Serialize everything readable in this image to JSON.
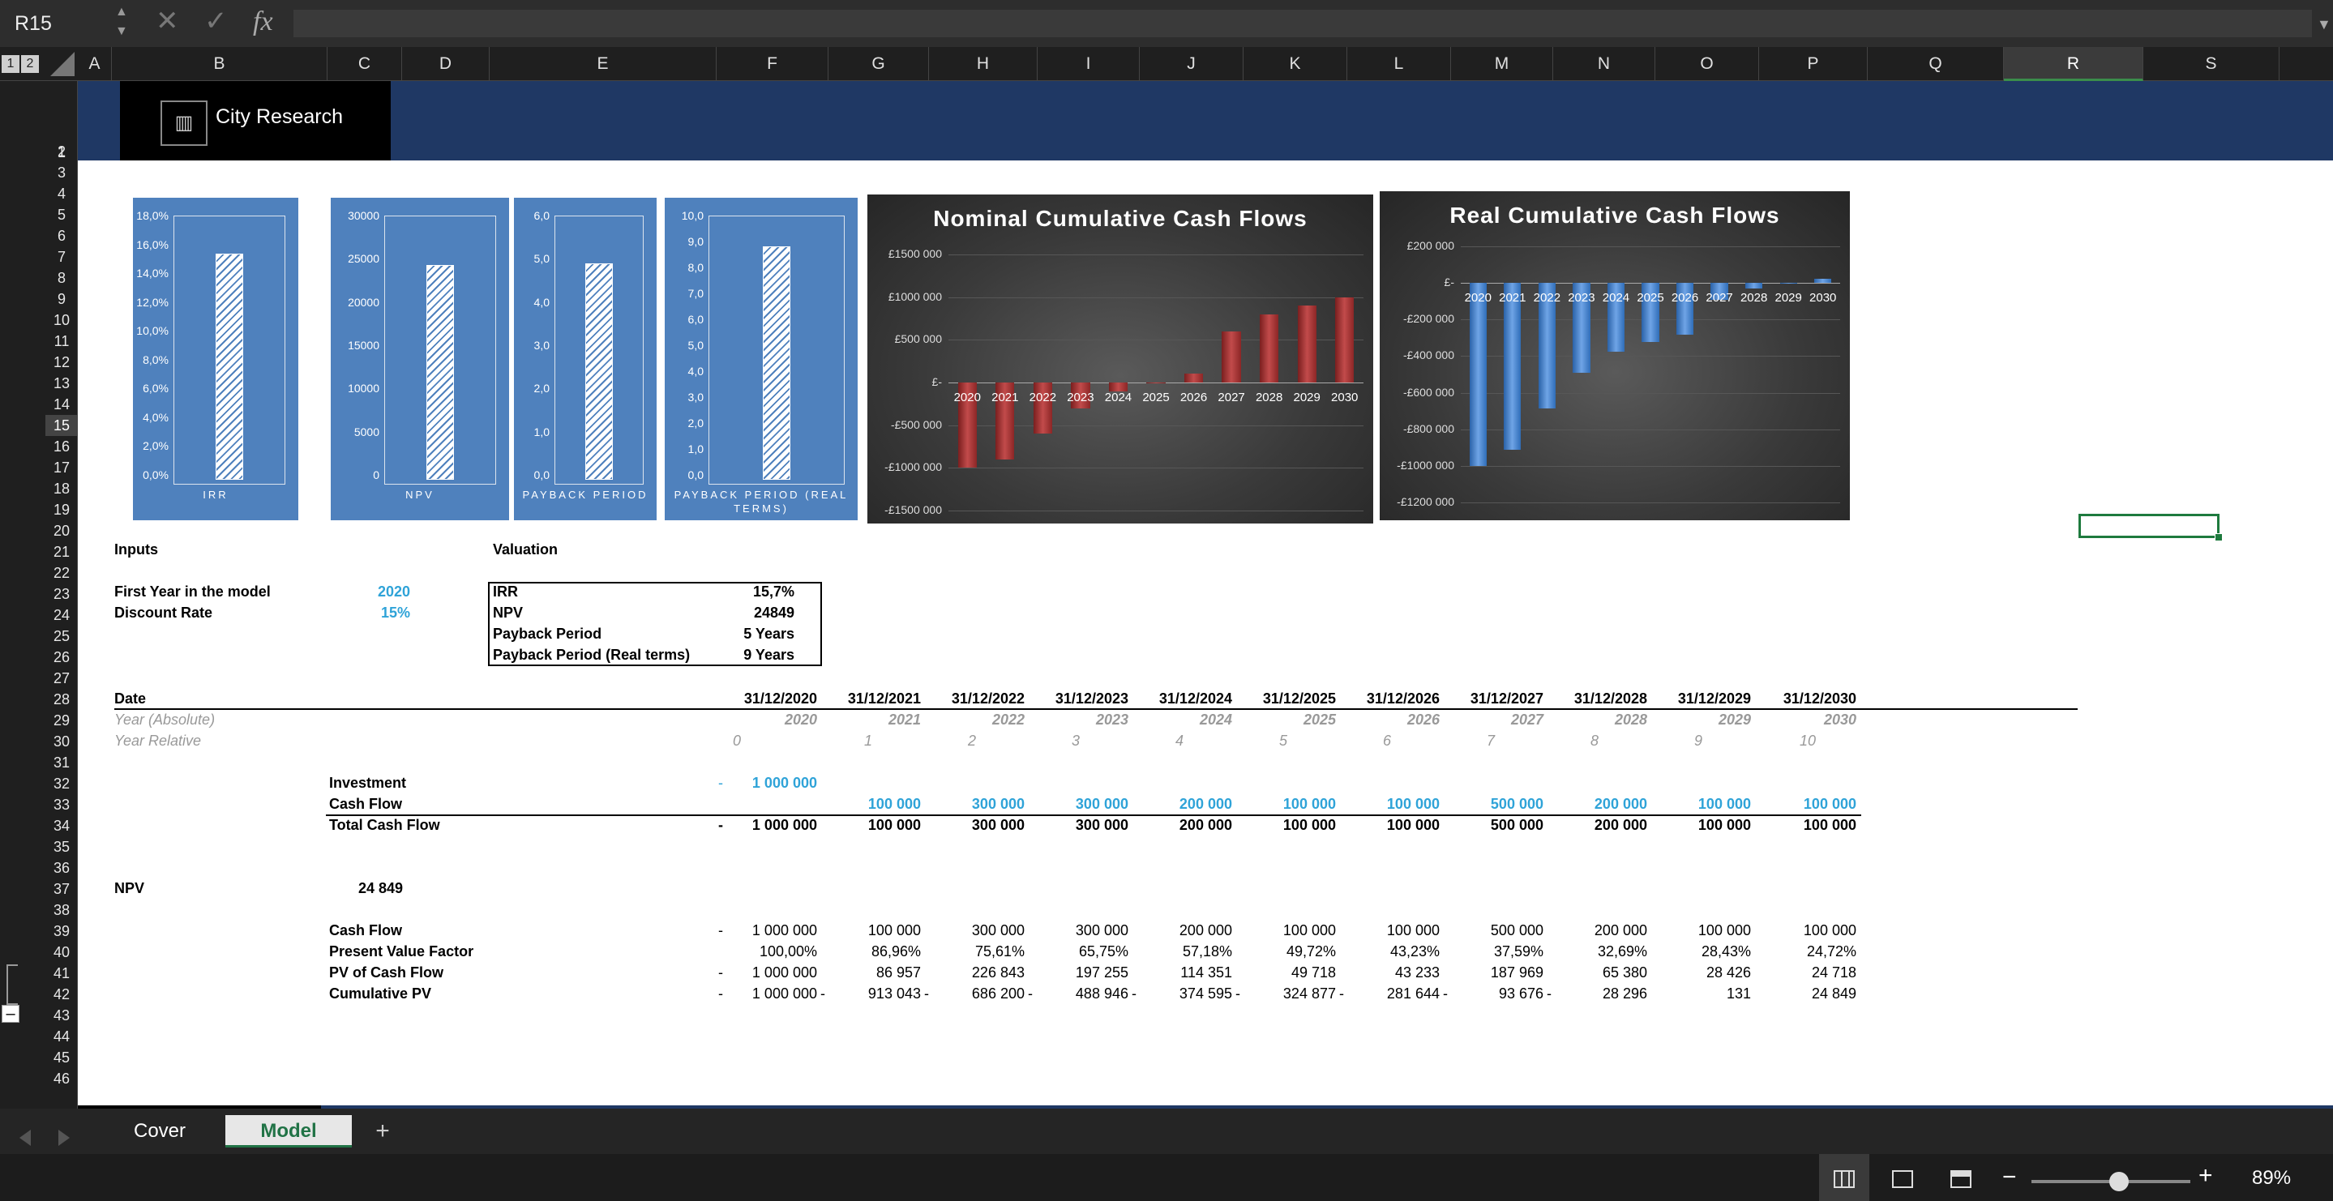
{
  "formula_bar": {
    "name_box": "R15",
    "formula": "",
    "fx": "fx",
    "cancel": "✕",
    "enter": "✓"
  },
  "outline": {
    "levels": [
      "1",
      "2"
    ],
    "collapse": "–"
  },
  "columns": [
    "A",
    "B",
    "C",
    "D",
    "E",
    "F",
    "G",
    "H",
    "I",
    "J",
    "K",
    "L",
    "M",
    "N",
    "O",
    "P",
    "Q",
    "R",
    "S"
  ],
  "selected_column": "R",
  "rows": [
    "1",
    "2",
    "3",
    "4",
    "5",
    "6",
    "7",
    "8",
    "9",
    "10",
    "11",
    "12",
    "13",
    "14",
    "15",
    "16",
    "17",
    "18",
    "19",
    "20",
    "21",
    "22",
    "23",
    "24",
    "25",
    "26",
    "27",
    "28",
    "29",
    "30",
    "31",
    "32",
    "33",
    "34",
    "35",
    "36",
    "37",
    "38",
    "39",
    "40",
    "41",
    "42",
    "43",
    "44",
    "45",
    "46"
  ],
  "selected_row": "15",
  "logo": {
    "text": "City Research",
    "icon": "chart-icon"
  },
  "kpi_charts": [
    {
      "caption": "IRR",
      "ticks": [
        "18,0%",
        "16,0%",
        "14,0%",
        "12,0%",
        "10,0%",
        "8,0%",
        "6,0%",
        "4,0%",
        "2,0%",
        "0,0%"
      ],
      "value": 15.7,
      "max": 18
    },
    {
      "caption": "NPV",
      "ticks": [
        "30000",
        "25000",
        "20000",
        "15000",
        "10000",
        "5000",
        "0"
      ],
      "value": 24849,
      "max": 30000
    },
    {
      "caption": "PAYBACK PERIOD",
      "ticks": [
        "6,0",
        "5,0",
        "4,0",
        "3,0",
        "2,0",
        "1,0",
        "0,0"
      ],
      "value": 5,
      "max": 6
    },
    {
      "caption": "PAYBACK PERIOD (REAL TERMS)",
      "ticks": [
        "10,0",
        "9,0",
        "8,0",
        "7,0",
        "6,0",
        "5,0",
        "4,0",
        "3,0",
        "2,0",
        "1,0",
        "0,0"
      ],
      "value": 9,
      "max": 10
    }
  ],
  "chart_data": [
    {
      "type": "bar",
      "title": "Nominal Cumulative Cash Flows",
      "categories": [
        "2020",
        "2021",
        "2022",
        "2023",
        "2024",
        "2025",
        "2026",
        "2027",
        "2028",
        "2029",
        "2030"
      ],
      "values": [
        -1000000,
        -900000,
        -600000,
        -300000,
        -100000,
        0,
        100000,
        600000,
        800000,
        900000,
        1000000
      ],
      "ylim": [
        -1500000,
        1500000
      ],
      "ytick_labels": [
        "£1500 000",
        "£1000 000",
        "£500 000",
        "£-",
        "-£500 000",
        "-£1000 000",
        "-£1500 000"
      ],
      "color": "#a83232"
    },
    {
      "type": "bar",
      "title": "Real Cumulative Cash Flows",
      "categories": [
        "2020",
        "2021",
        "2022",
        "2023",
        "2024",
        "2025",
        "2026",
        "2027",
        "2028",
        "2029",
        "2030"
      ],
      "values": [
        -1000000,
        -913043,
        -686200,
        -488946,
        -374595,
        -324877,
        -281644,
        -93676,
        -28296,
        131,
        24849
      ],
      "ylim": [
        -1200000,
        200000
      ],
      "ytick_labels": [
        "£200 000",
        "£-",
        "-£200 000",
        "-£400 000",
        "-£600 000",
        "-£800 000",
        "-£1000 000",
        "-£1200 000"
      ],
      "color": "#4f86cc"
    }
  ],
  "inputs": {
    "title": "Inputs",
    "first_year_label": "First Year in the model",
    "first_year": "2020",
    "discount_label": "Discount Rate",
    "discount": "15%"
  },
  "valuation": {
    "title": "Valuation",
    "rows": [
      [
        "IRR",
        "15,7%"
      ],
      [
        "NPV",
        "24849"
      ],
      [
        "Payback Period",
        "5 Years"
      ],
      [
        "Payback Period (Real terms)",
        "9 Years"
      ]
    ]
  },
  "timeline": {
    "date_label": "Date",
    "dates": [
      "31/12/2020",
      "31/12/2021",
      "31/12/2022",
      "31/12/2023",
      "31/12/2024",
      "31/12/2025",
      "31/12/2026",
      "31/12/2027",
      "31/12/2028",
      "31/12/2029",
      "31/12/2030"
    ],
    "year_abs_label": "Year (Absolute)",
    "years": [
      "2020",
      "2021",
      "2022",
      "2023",
      "2024",
      "2025",
      "2026",
      "2027",
      "2028",
      "2029",
      "2030"
    ],
    "year_rel_label": "Year Relative",
    "rel": [
      "0",
      "1",
      "2",
      "3",
      "4",
      "5",
      "6",
      "7",
      "8",
      "9",
      "10"
    ]
  },
  "cashflows": {
    "investment_label": "Investment",
    "investment_sign": "-",
    "investment": "1 000 000",
    "cash_flow_label": "Cash Flow",
    "cash_flows": [
      "",
      "100 000",
      "300 000",
      "300 000",
      "200 000",
      "100 000",
      "100 000",
      "500 000",
      "200 000",
      "100 000",
      "100 000"
    ],
    "total_label": "Total Cash Flow",
    "totals": [
      "1 000 000",
      "100 000",
      "300 000",
      "300 000",
      "200 000",
      "100 000",
      "100 000",
      "500 000",
      "200 000",
      "100 000",
      "100 000"
    ],
    "total_sign": "-"
  },
  "npv": {
    "label": "NPV",
    "value": "24 849"
  },
  "pv": {
    "cf_label": "Cash Flow",
    "cf_sign": "-",
    "cf": [
      "1 000 000",
      "100 000",
      "300 000",
      "300 000",
      "200 000",
      "100 000",
      "100 000",
      "500 000",
      "200 000",
      "100 000",
      "100 000"
    ],
    "pvf_label": "Present Value Factor",
    "pvf": [
      "100,00%",
      "86,96%",
      "75,61%",
      "65,75%",
      "57,18%",
      "49,72%",
      "43,23%",
      "37,59%",
      "32,69%",
      "28,43%",
      "24,72%"
    ],
    "pvcf_label": "PV of Cash Flow",
    "pvcf_sign": "-",
    "pvcf": [
      "1 000 000",
      "86 957",
      "226 843",
      "197 255",
      "114 351",
      "49 718",
      "43 233",
      "187 969",
      "65 380",
      "28 426",
      "24 718"
    ],
    "cum_label": "Cumulative PV",
    "cum_signs": [
      "-",
      "-",
      "-",
      "-",
      "-",
      "-",
      "-",
      "-",
      "-",
      "",
      ""
    ],
    "cum": [
      "1 000 000",
      "913 043",
      "686 200",
      "488 946",
      "374 595",
      "324 877",
      "281 644",
      "93 676",
      "28 296",
      "131",
      "24 849"
    ]
  },
  "tabs": [
    {
      "label": "Cover",
      "active": false
    },
    {
      "label": "Model",
      "active": true
    }
  ],
  "add_sheet": "+",
  "zoom": {
    "value": "89%",
    "minus": "−",
    "plus": "+",
    "level": 0.55
  }
}
